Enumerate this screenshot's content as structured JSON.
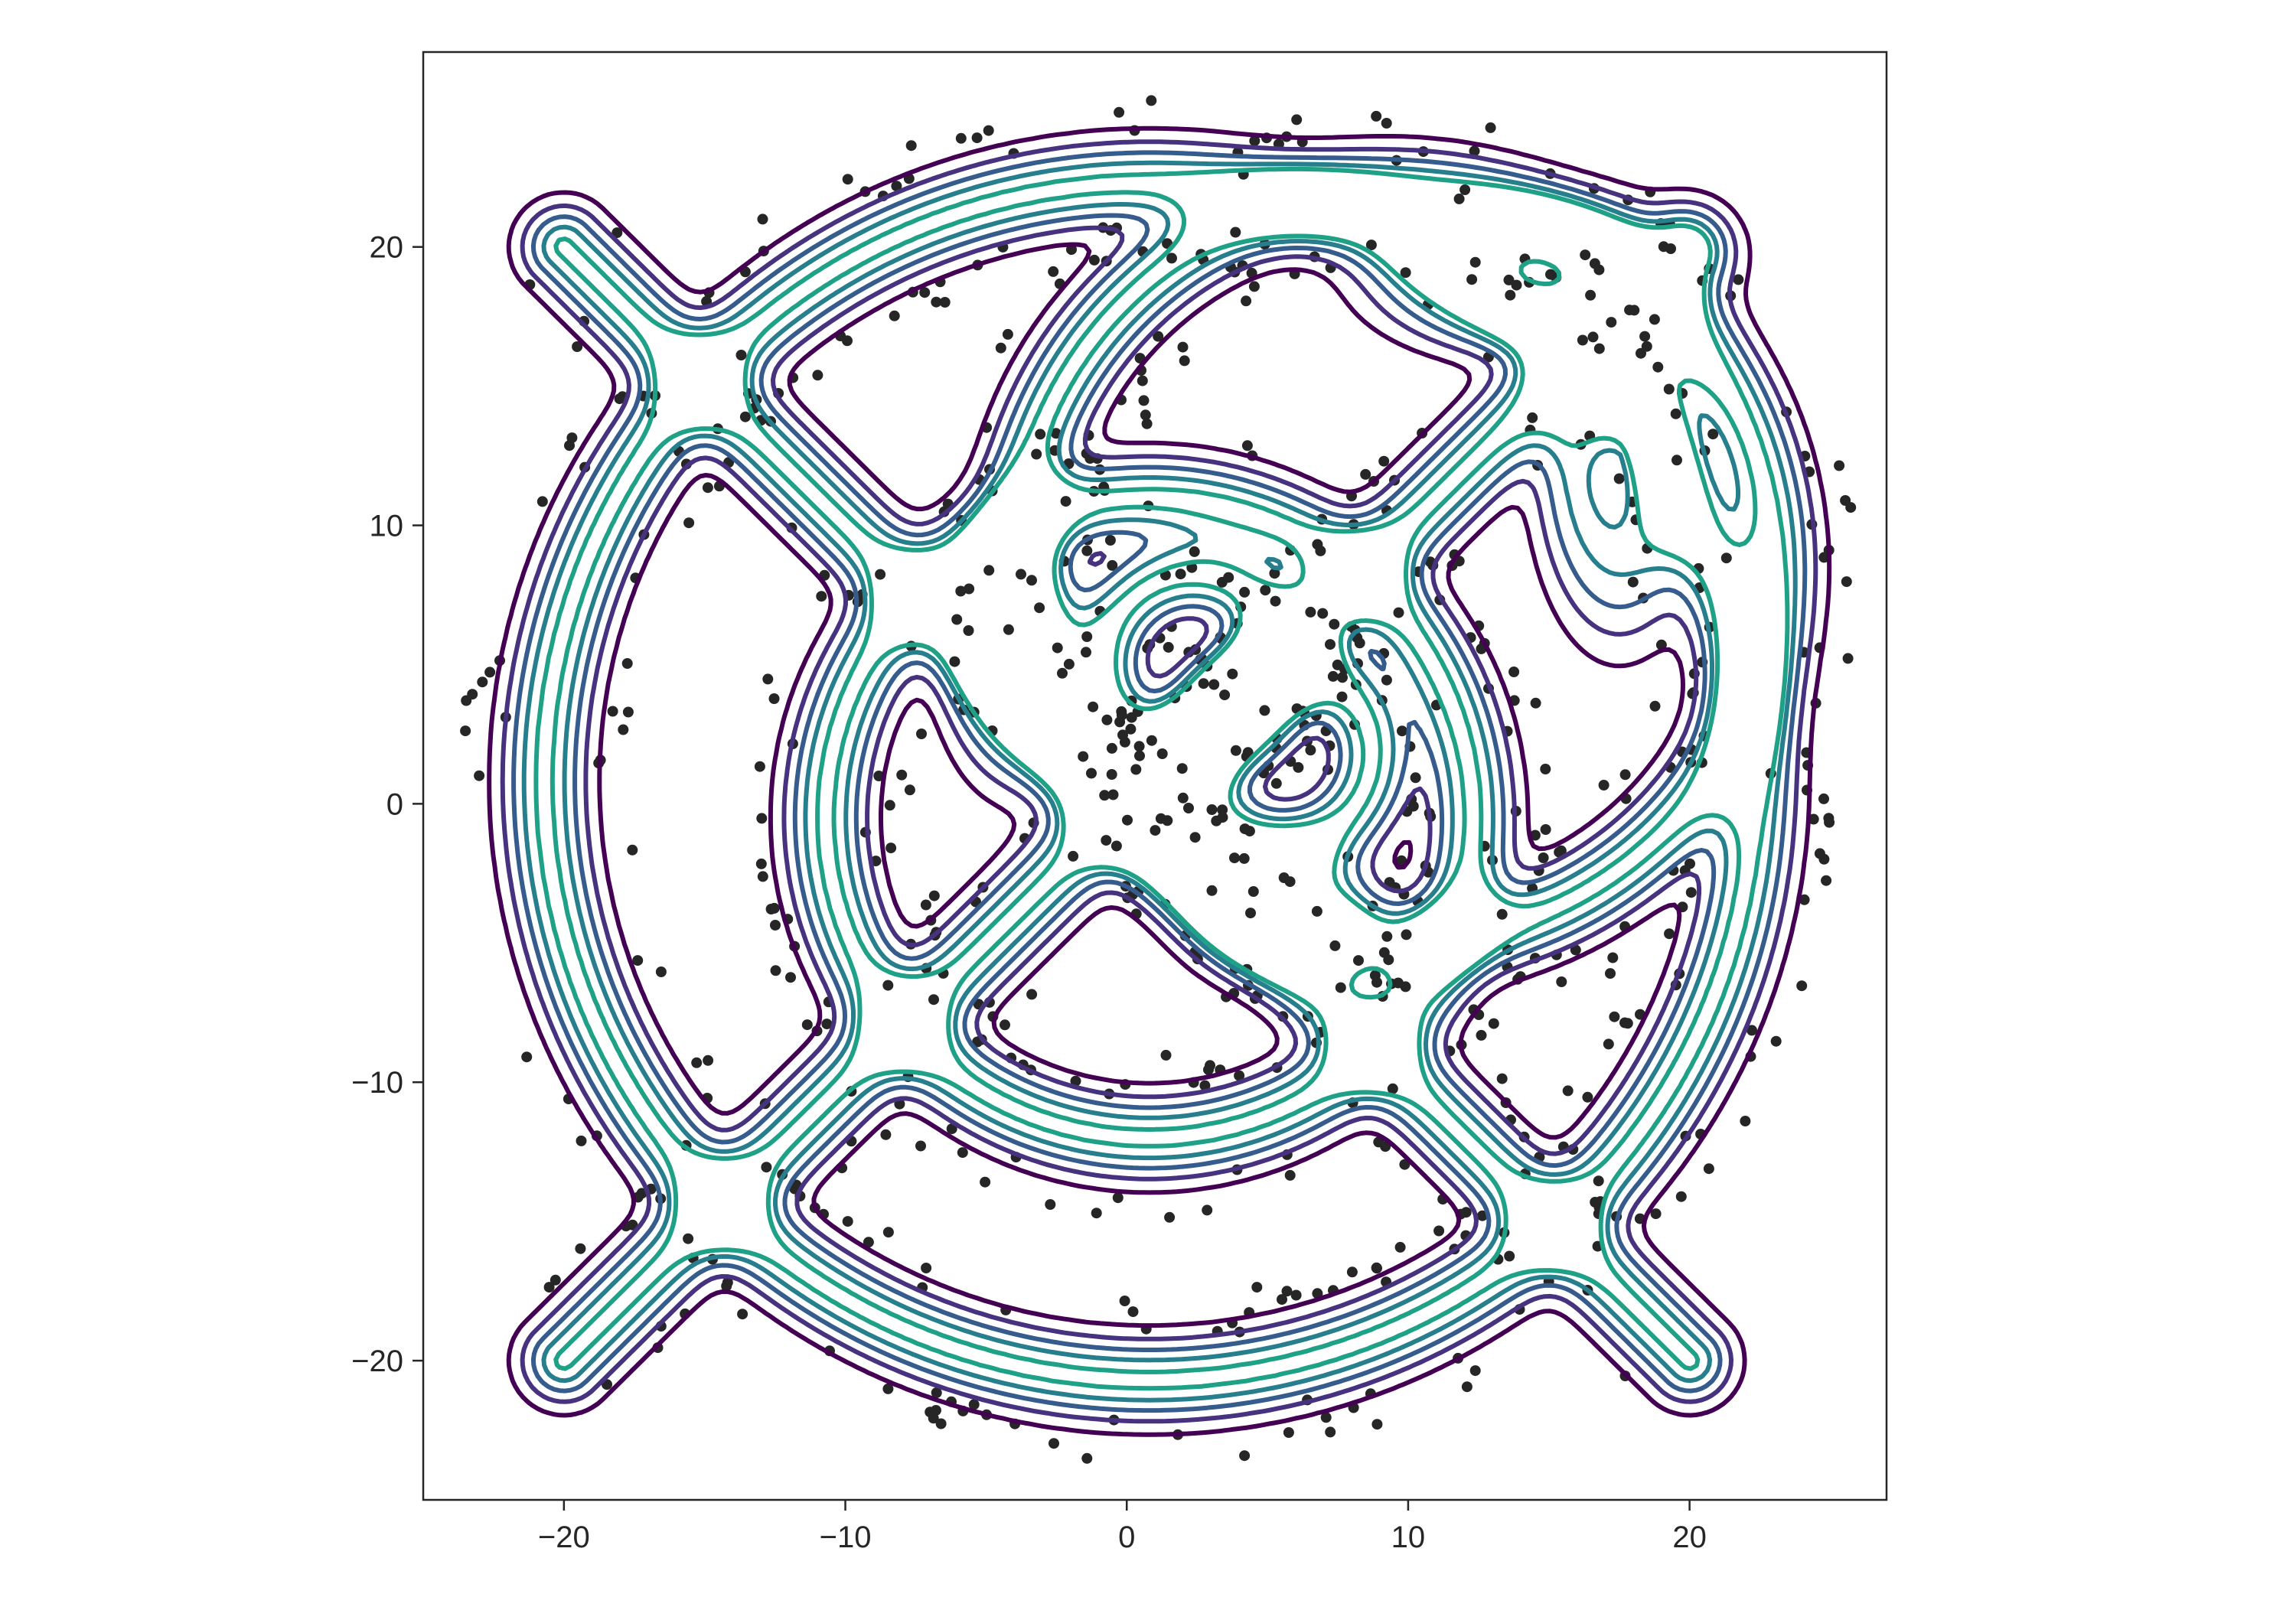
{
  "chart_data": {
    "type": "contour",
    "title": "",
    "xlabel": "",
    "ylabel": "",
    "xlim": [
      -25,
      27
    ],
    "ylim": [
      -25,
      27
    ],
    "x_ticks": [
      -20,
      -10,
      0,
      10,
      20
    ],
    "y_ticks": [
      -20,
      -10,
      0,
      10,
      20
    ],
    "x_tick_labels": [
      "−20",
      "−10",
      "0",
      "10",
      "20"
    ],
    "y_tick_labels": [
      "−20",
      "−10",
      "0",
      "10",
      "20"
    ],
    "grid": false,
    "legend": "none",
    "colors": {
      "points": "#262626",
      "levels": [
        "#440154",
        "#46327e",
        "#365c8d",
        "#277f8e",
        "#1fa187"
      ]
    },
    "features": {
      "outer_ring": {
        "center": [
          0.8,
          0.8
        ],
        "radius": 21.5
      },
      "inner_ring": {
        "center": [
          0.8,
          -0.5
        ],
        "radius": 11.5
      },
      "upper_right_ring": {
        "center": [
          9.5,
          8.5
        ],
        "radius": 13.5
      },
      "inner_cross_rings": [
        {
          "center": [
            2.4,
            5.0
          ],
          "radius": 3.2
        },
        {
          "center": [
            5.5,
            1.8
          ],
          "radius": 3.2
        }
      ],
      "spokes": [
        {
          "from": [
            -20,
            20
          ],
          "to": [
            20,
            -20
          ]
        },
        {
          "from": [
            -20,
            -20
          ],
          "to": [
            20,
            20
          ]
        }
      ],
      "small_loops": [
        {
          "center": [
            -4,
            5.5
          ],
          "rx": 1.2,
          "ry": 2.2
        },
        {
          "center": [
            5.5,
            -3.8
          ],
          "rx": 1.6,
          "ry": 1.2
        },
        {
          "center": [
            17.5,
            12.5
          ],
          "rx": 1.6,
          "ry": 3.5
        },
        {
          "center": [
            14.5,
            19
          ],
          "rx": 3.2,
          "ry": 1.6
        }
      ]
    }
  }
}
